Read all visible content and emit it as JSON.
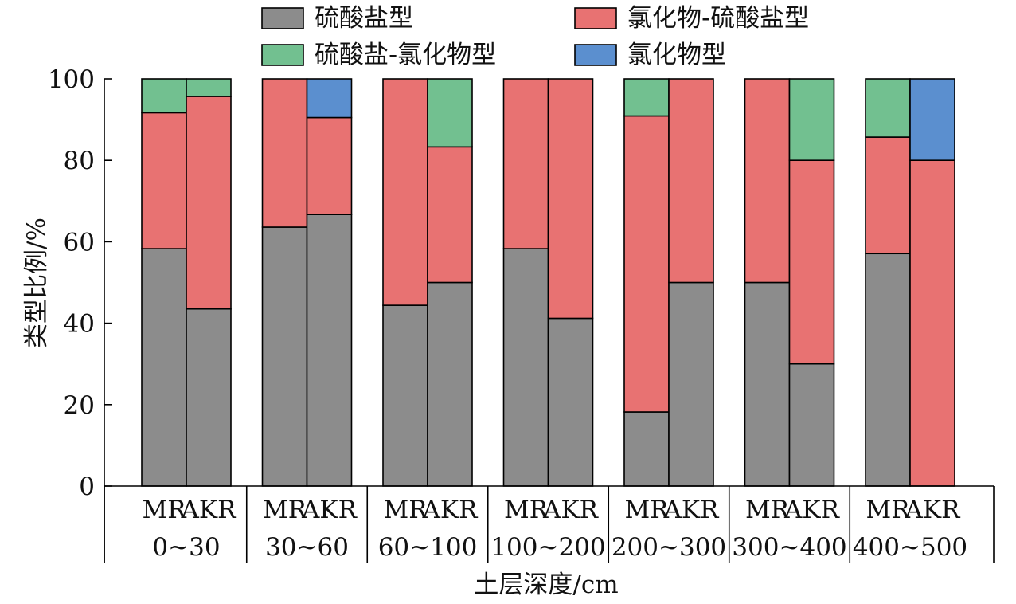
{
  "chart_data": {
    "type": "bar",
    "stacked": true,
    "xlabel": "土层深度/cm",
    "ylabel": "类型比例/%",
    "ylim": [
      0,
      100
    ],
    "yticks": [
      0,
      20,
      40,
      60,
      80,
      100
    ],
    "sub_categories": [
      "MR",
      "AKR"
    ],
    "groups": [
      "0~30",
      "30~60",
      "60~100",
      "100~200",
      "200~300",
      "300~400",
      "400~500"
    ],
    "legend": "top",
    "series": [
      {
        "name": "硫酸盐型",
        "color": "#8c8c8c",
        "values": [
          [
            58.3,
            43.5
          ],
          [
            63.6,
            66.7
          ],
          [
            44.4,
            50.0
          ],
          [
            58.3,
            41.2
          ],
          [
            18.2,
            50.0
          ],
          [
            50.0,
            30.0
          ],
          [
            57.1,
            0.0
          ]
        ]
      },
      {
        "name": "氯化物-硫酸盐型",
        "color": "#e87272",
        "values": [
          [
            33.4,
            52.2
          ],
          [
            36.4,
            23.8
          ],
          [
            55.6,
            33.3
          ],
          [
            41.7,
            58.8
          ],
          [
            72.7,
            50.0
          ],
          [
            50.0,
            50.0
          ],
          [
            28.6,
            80.0
          ]
        ]
      },
      {
        "name": "硫酸盐-氯化物型",
        "color": "#72c090",
        "values": [
          [
            8.3,
            4.3
          ],
          [
            0.0,
            0.0
          ],
          [
            0.0,
            16.7
          ],
          [
            0.0,
            0.0
          ],
          [
            9.1,
            0.0
          ],
          [
            0.0,
            20.0
          ],
          [
            14.3,
            0.0
          ]
        ]
      },
      {
        "name": "氯化物型",
        "color": "#5b8fcf",
        "values": [
          [
            0.0,
            0.0
          ],
          [
            0.0,
            9.5
          ],
          [
            0.0,
            0.0
          ],
          [
            0.0,
            0.0
          ],
          [
            0.0,
            0.0
          ],
          [
            0.0,
            0.0
          ],
          [
            0.0,
            20.0
          ]
        ]
      }
    ]
  }
}
